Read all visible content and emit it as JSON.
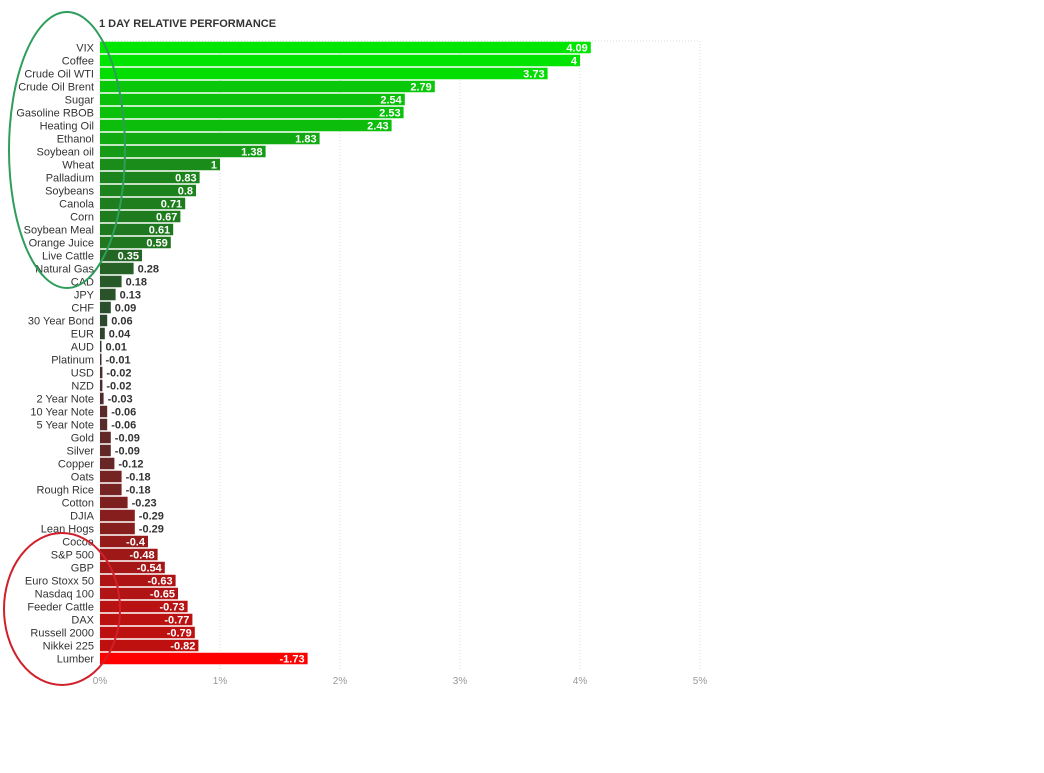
{
  "chart_data": {
    "type": "bar",
    "orientation": "horizontal",
    "title": "1 DAY RELATIVE PERFORMANCE",
    "xlim": [
      0,
      5
    ],
    "x_ticks": [
      "0%",
      "1%",
      "2%",
      "3%",
      "4%",
      "5%"
    ],
    "grid": true,
    "categories": [
      "VIX",
      "Coffee",
      "Crude Oil WTI",
      "Crude Oil Brent",
      "Sugar",
      "Gasoline RBOB",
      "Heating Oil",
      "Ethanol",
      "Soybean oil",
      "Wheat",
      "Palladium",
      "Soybeans",
      "Canola",
      "Corn",
      "Soybean Meal",
      "Orange Juice",
      "Live Cattle",
      "Natural Gas",
      "CAD",
      "JPY",
      "CHF",
      "30 Year Bond",
      "EUR",
      "AUD",
      "Platinum",
      "USD",
      "NZD",
      "2 Year Note",
      "10 Year Note",
      "5 Year Note",
      "Gold",
      "Silver",
      "Copper",
      "Oats",
      "Rough Rice",
      "Cotton",
      "DJIA",
      "Lean Hogs",
      "Cocoa",
      "S&P 500",
      "GBP",
      "Euro Stoxx 50",
      "Nasdaq 100",
      "Feeder Cattle",
      "DAX",
      "Russell 2000",
      "Nikkei 225",
      "Lumber"
    ],
    "values": [
      4.09,
      4,
      3.73,
      2.79,
      2.54,
      2.53,
      2.43,
      1.83,
      1.38,
      1,
      0.83,
      0.8,
      0.71,
      0.67,
      0.61,
      0.59,
      0.35,
      0.28,
      0.18,
      0.13,
      0.09,
      0.06,
      0.04,
      0.01,
      -0.01,
      -0.02,
      -0.02,
      -0.03,
      -0.06,
      -0.06,
      -0.09,
      -0.09,
      -0.12,
      -0.18,
      -0.18,
      -0.23,
      -0.29,
      -0.29,
      -0.4,
      -0.48,
      -0.54,
      -0.63,
      -0.65,
      -0.73,
      -0.77,
      -0.79,
      -0.82,
      -1.73
    ],
    "value_labels": [
      "4.09",
      "4",
      "3.73",
      "2.79",
      "2.54",
      "2.53",
      "2.43",
      "1.83",
      "1.38",
      "1",
      "0.83",
      "0.8",
      "0.71",
      "0.67",
      "0.61",
      "0.59",
      "0.35",
      "0.28",
      "0.18",
      "0.13",
      "0.09",
      "0.06",
      "0.04",
      "0.01",
      "-0.01",
      "-0.02",
      "-0.02",
      "-0.03",
      "-0.06",
      "-0.06",
      "-0.09",
      "-0.09",
      "-0.12",
      "-0.18",
      "-0.18",
      "-0.23",
      "-0.29",
      "-0.29",
      "-0.4",
      "-0.48",
      "-0.54",
      "-0.63",
      "-0.65",
      "-0.73",
      "-0.77",
      "-0.79",
      "-0.82",
      "-1.73"
    ],
    "colors": {
      "positive_max": "#00e600",
      "neutral": "#333333",
      "negative_max": "#ff0000"
    },
    "annotations": [
      {
        "shape": "ellipse",
        "color": "#2e9e5a"
      },
      {
        "shape": "ellipse",
        "color": "#d0202a"
      }
    ]
  }
}
